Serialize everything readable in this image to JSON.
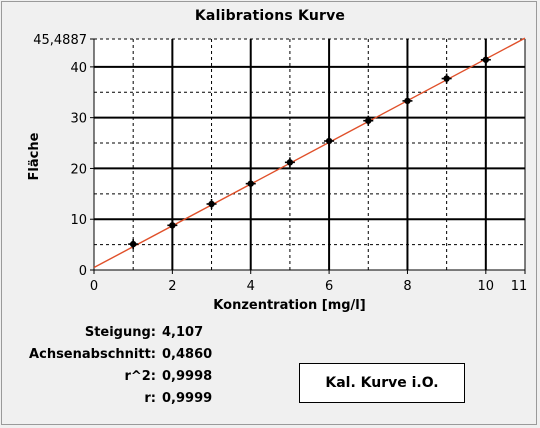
{
  "chart_data": {
    "type": "scatter",
    "title": "Kalibrations Kurve",
    "xlabel": "Konzentration [mg/l]",
    "ylabel": "Fläche",
    "xlim": [
      0,
      11
    ],
    "ylim": [
      0,
      45.4887
    ],
    "x_ticks": [
      "0",
      "2",
      "4",
      "6",
      "8",
      "10",
      "11"
    ],
    "x_tick_values": [
      0,
      2,
      4,
      6,
      8,
      10,
      11
    ],
    "y_ticks": [
      "0",
      "10",
      "20",
      "30",
      "40",
      "45,4887"
    ],
    "y_tick_values": [
      0,
      10,
      20,
      30,
      40,
      45.4887
    ],
    "grid": true,
    "series": [
      {
        "x": [
          1,
          2,
          3,
          4,
          5,
          6,
          7,
          8,
          9,
          10
        ],
        "y": [
          5.1,
          8.8,
          13.0,
          17.0,
          21.2,
          25.4,
          29.4,
          33.3,
          37.7,
          41.4
        ]
      }
    ],
    "fit_line": {
      "slope": 4.107,
      "intercept": 0.486,
      "color": "#e0502a"
    },
    "point_color": "#000000"
  },
  "stats": [
    {
      "label": "Steigung:",
      "value": "4,107"
    },
    {
      "label": "Achsenabschnitt:",
      "value": "0,4860"
    },
    {
      "label": "r^2:",
      "value": "0,9998"
    },
    {
      "label": "r:",
      "value": "0,9999"
    }
  ],
  "status": {
    "label": "Kal. Kurve i.O."
  }
}
